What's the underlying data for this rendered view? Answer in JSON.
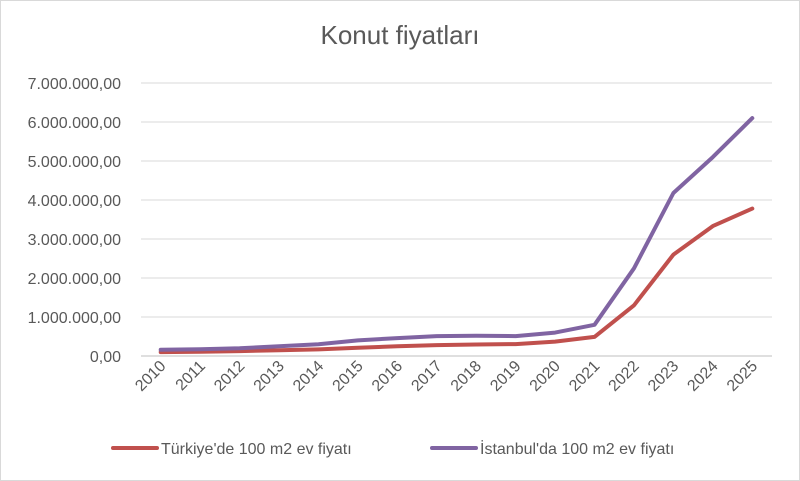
{
  "chart_data": {
    "type": "line",
    "title": "Konut fiyatları",
    "x": [
      "2010",
      "2011",
      "2012",
      "2013",
      "2014",
      "2015",
      "2016",
      "2017",
      "2018",
      "2019",
      "2020",
      "2021",
      "2022",
      "2023",
      "2024",
      "2025"
    ],
    "y_ticks": [
      "0,00",
      "1.000.000,00",
      "2.000.000,00",
      "3.000.000,00",
      "4.000.000,00",
      "5.000.000,00",
      "6.000.000,00",
      "7.000.000,00"
    ],
    "ylim": [
      0,
      7000000
    ],
    "grid": true,
    "legend_position": "bottom",
    "series": [
      {
        "name": "Türkiye'de 100 m2 ev fiyatı",
        "color": "#c0504d",
        "values": [
          100000,
          110000,
          125000,
          145000,
          170000,
          210000,
          250000,
          280000,
          295000,
          305000,
          370000,
          490000,
          1300000,
          2600000,
          3330000,
          3780000
        ]
      },
      {
        "name": "İstanbul'da 100 m2 ev fiyatı",
        "color": "#8064a2",
        "values": [
          160000,
          175000,
          200000,
          250000,
          300000,
          400000,
          460000,
          510000,
          520000,
          510000,
          600000,
          800000,
          2250000,
          4180000,
          5100000,
          6100000
        ]
      }
    ]
  }
}
